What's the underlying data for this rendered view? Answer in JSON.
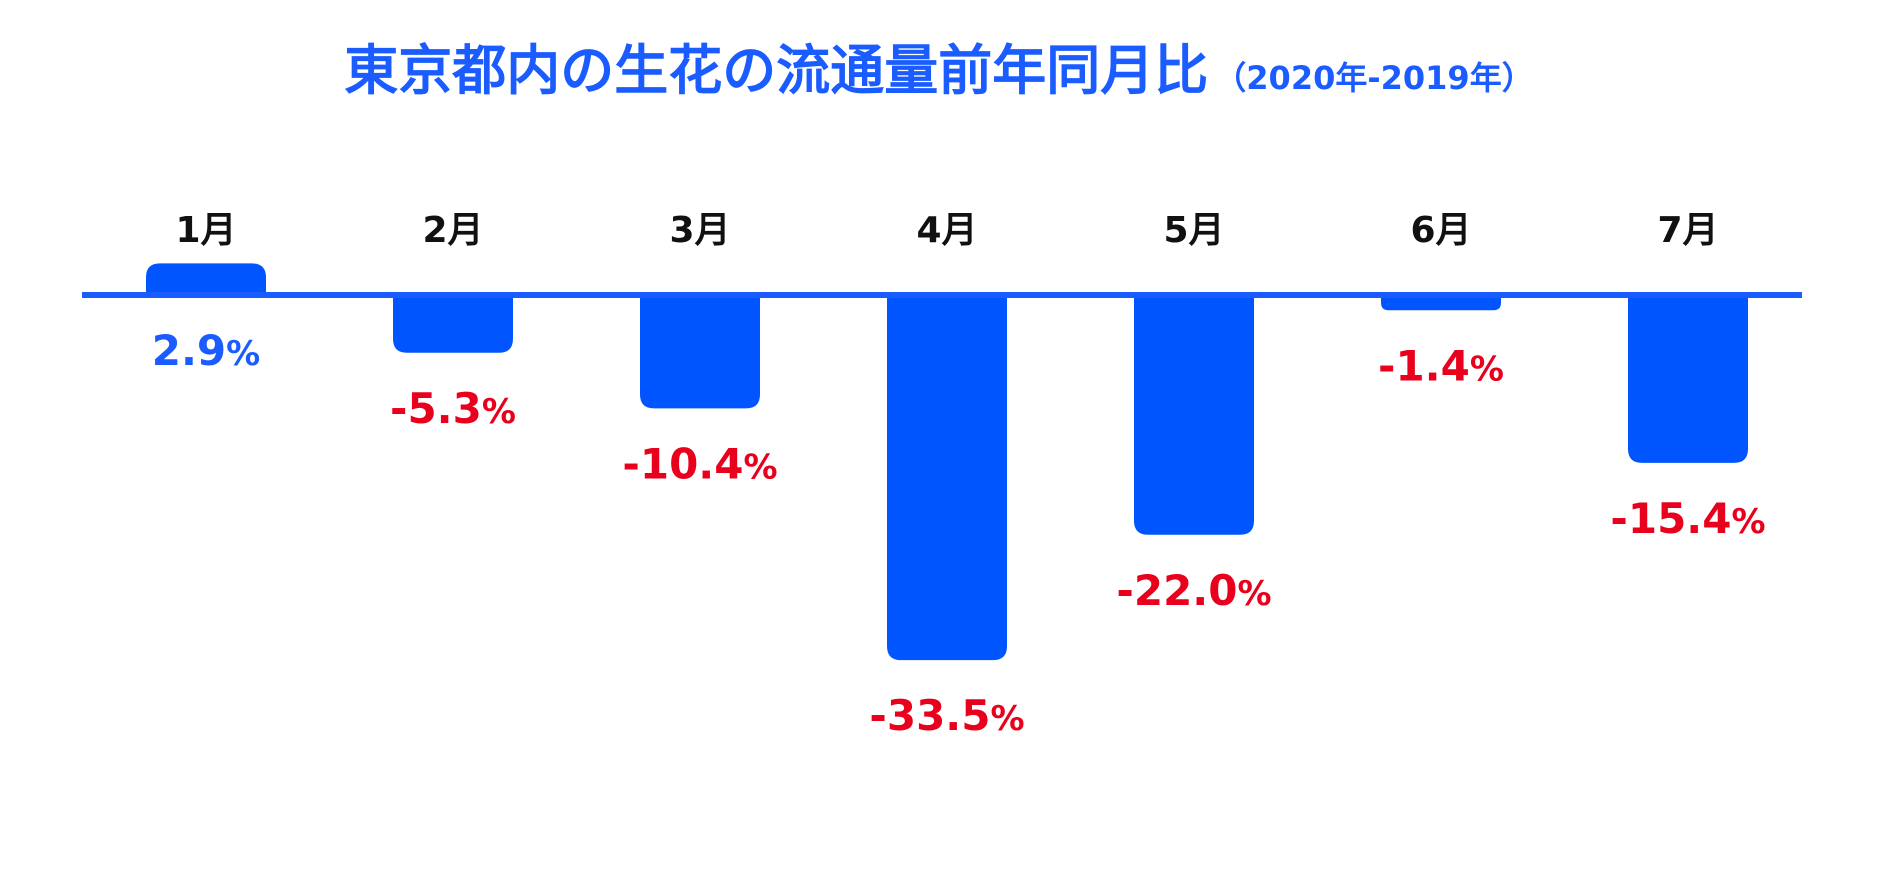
{
  "title": "東京都内の生花の流通量前年同月比",
  "subtitle": "（2020年-2019年）",
  "colors": {
    "title": "#1a5cff",
    "bar": "#0055ff",
    "baseline": "#1a5cff",
    "month_label": "#111111",
    "positive_label": "#1a5cff",
    "negative_label": "#e8001c"
  },
  "chart_data": {
    "type": "bar",
    "title": "東京都内の生花の流通量前年同月比",
    "subtitle": "（2020年-2019年）",
    "categories": [
      "1月",
      "2月",
      "3月",
      "4月",
      "5月",
      "6月",
      "7月"
    ],
    "values": [
      2.9,
      -5.3,
      -10.4,
      -33.5,
      -22.0,
      -1.4,
      -15.4
    ],
    "data_labels": [
      "2.9",
      "-5.3",
      "-10.4",
      "-33.5",
      "-22.0",
      "-1.4",
      "-15.4"
    ],
    "unit": "%",
    "xlabel": "",
    "ylabel": "",
    "ylim": [
      -33.5,
      2.9
    ],
    "grid": false,
    "legend": "none"
  }
}
